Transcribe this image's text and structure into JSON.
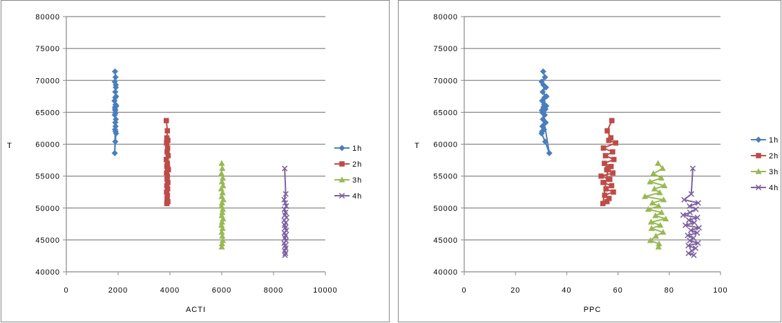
{
  "chart_data": [
    {
      "type": "line",
      "xlabel": "ACTI",
      "ylabel": "T",
      "xlim": [
        0,
        10000
      ],
      "ylim": [
        40000,
        80000
      ],
      "xticks": [
        0,
        2000,
        4000,
        6000,
        8000,
        10000
      ],
      "xtick_labels": [
        "0",
        "2000",
        "4000",
        "6000",
        "8000",
        "10000"
      ],
      "yticks": [
        40000,
        45000,
        50000,
        55000,
        60000,
        65000,
        70000,
        75000,
        80000
      ],
      "ytick_labels": [
        "40000",
        "45000",
        "50000",
        "55000",
        "60000",
        "65000",
        "70000",
        "75000",
        "80000"
      ],
      "grid": "horizontal",
      "legend": "right",
      "series": [
        {
          "name": "1h",
          "color": "#4a7ebb",
          "marker": "diamond",
          "x": [
            1880,
            1900,
            1870,
            1910,
            1890,
            1920,
            1860,
            1900,
            1880,
            1930,
            1890,
            1870,
            1910,
            1890,
            1900,
            1880,
            1920,
            1890,
            1870,
            1900,
            1890,
            1910,
            1880,
            1900
          ],
          "y": [
            71400,
            70500,
            69800,
            68900,
            68200,
            67500,
            66800,
            66200,
            65800,
            66000,
            65300,
            64600,
            63900,
            63400,
            62800,
            62300,
            61700,
            60400,
            58600,
            64900,
            67300,
            69300,
            65500,
            62000
          ]
        },
        {
          "name": "2h",
          "color": "#be4b48",
          "marker": "square",
          "x": [
            3860,
            3900,
            3880,
            3920,
            3870,
            3910,
            3890,
            3930,
            3860,
            3900,
            3880,
            3940,
            3870,
            3900,
            3890,
            3920,
            3880,
            3910,
            3870,
            3900,
            3890,
            3920,
            3880,
            3910
          ],
          "y": [
            63700,
            62100,
            61000,
            60600,
            60200,
            59400,
            58800,
            58200,
            57600,
            57000,
            56500,
            56000,
            55500,
            55000,
            54500,
            54000,
            53500,
            53000,
            52500,
            52000,
            51500,
            51000,
            50700,
            56200
          ]
        },
        {
          "name": "3h",
          "color": "#98b954",
          "marker": "triangle",
          "x": [
            6000,
            6020,
            5990,
            6040,
            6010,
            6050,
            5980,
            6030,
            6000,
            6060,
            6010,
            5990,
            6040,
            6020,
            6000,
            6050,
            6010,
            5990,
            6030,
            6000,
            6020,
            6040,
            6010,
            6000
          ],
          "y": [
            57000,
            56200,
            55400,
            54700,
            54100,
            53500,
            53000,
            52400,
            51800,
            51300,
            50800,
            50300,
            49800,
            49300,
            48800,
            48300,
            47800,
            47300,
            46800,
            46200,
            45600,
            44900,
            44400,
            43900
          ]
        },
        {
          "name": "4h",
          "color": "#7d60a0",
          "marker": "x",
          "x": [
            8430,
            8470,
            8410,
            8450,
            8490,
            8420,
            8460,
            8440,
            8500,
            8410,
            8470,
            8430,
            8450,
            8490,
            8420,
            8460,
            8440,
            8480,
            8410,
            8450,
            8470,
            8430,
            8460,
            8440
          ],
          "y": [
            56200,
            52200,
            51300,
            50800,
            50300,
            49800,
            49300,
            48900,
            48500,
            48100,
            47700,
            47300,
            46900,
            46500,
            46100,
            45700,
            45300,
            44900,
            44500,
            44100,
            43700,
            43300,
            42900,
            42600
          ]
        }
      ]
    },
    {
      "type": "line",
      "xlabel": "PPC",
      "ylabel": "T",
      "xlim": [
        0,
        100
      ],
      "ylim": [
        40000,
        80000
      ],
      "xticks": [
        0,
        20,
        40,
        60,
        80,
        100
      ],
      "xtick_labels": [
        "0",
        "20",
        "40",
        "60",
        "80",
        "100"
      ],
      "yticks": [
        40000,
        45000,
        50000,
        55000,
        60000,
        65000,
        70000,
        75000,
        80000
      ],
      "ytick_labels": [
        "40000",
        "45000",
        "50000",
        "55000",
        "60000",
        "65000",
        "70000",
        "75000",
        "80000"
      ],
      "grid": "horizontal",
      "legend": "right",
      "series": [
        {
          "name": "1h",
          "color": "#4a7ebb",
          "marker": "diamond",
          "x": [
            30.8,
            31.5,
            30.2,
            31.9,
            30.6,
            32.1,
            30.4,
            31.2,
            30.9,
            32.0,
            30.3,
            31.4,
            30.7,
            31.8,
            30.5,
            31.1,
            30.2,
            31.6,
            33.2,
            30.6,
            31.3,
            30.9,
            31.7,
            30.4
          ],
          "y": [
            71400,
            70500,
            69800,
            68900,
            68200,
            67500,
            66800,
            66200,
            65800,
            66000,
            65300,
            64600,
            63900,
            63400,
            62800,
            62300,
            61700,
            60400,
            58600,
            64900,
            67300,
            69300,
            65500,
            62000
          ]
        },
        {
          "name": "2h",
          "color": "#be4b48",
          "marker": "square",
          "x": [
            57.6,
            55.8,
            57.2,
            56.4,
            59.1,
            54.3,
            57.9,
            55.1,
            58.4,
            54.7,
            57.3,
            55.6,
            58.0,
            53.4,
            56.8,
            54.2,
            57.5,
            55.3,
            58.2,
            54.8,
            56.5,
            55.7,
            54.1,
            56.1
          ],
          "y": [
            63700,
            62100,
            61000,
            60600,
            60200,
            59400,
            58800,
            58200,
            57600,
            57000,
            56500,
            56000,
            55500,
            55000,
            54500,
            54000,
            53500,
            53000,
            52500,
            52000,
            51500,
            51000,
            50700,
            56200
          ]
        },
        {
          "name": "3h",
          "color": "#98b954",
          "marker": "triangle",
          "x": [
            75.6,
            77.4,
            73.8,
            76.9,
            72.5,
            78.1,
            74.2,
            76.3,
            70.5,
            77.8,
            73.4,
            75.9,
            71.8,
            77.0,
            74.6,
            78.6,
            72.9,
            76.5,
            73.1,
            77.6,
            74.8,
            72.6,
            76.0,
            75.8
          ],
          "y": [
            57000,
            56200,
            55400,
            54700,
            54100,
            53500,
            53000,
            52400,
            51800,
            51300,
            50800,
            50300,
            49800,
            49300,
            48800,
            48300,
            47800,
            47300,
            46800,
            46200,
            45600,
            44900,
            44400,
            43900
          ]
        },
        {
          "name": "4h",
          "color": "#7d60a0",
          "marker": "x",
          "x": [
            89.2,
            88.6,
            85.8,
            91.3,
            87.9,
            90.4,
            88.1,
            85.4,
            91.0,
            87.6,
            89.8,
            86.3,
            91.6,
            88.4,
            90.9,
            87.2,
            89.5,
            88.0,
            91.2,
            87.4,
            90.3,
            88.8,
            87.5,
            89.6
          ],
          "y": [
            56200,
            52200,
            51300,
            50800,
            50300,
            49800,
            49300,
            48900,
            48500,
            48100,
            47700,
            47300,
            46900,
            46500,
            46100,
            45700,
            45300,
            44900,
            44500,
            44100,
            43700,
            43300,
            42900,
            42600
          ]
        }
      ]
    }
  ]
}
